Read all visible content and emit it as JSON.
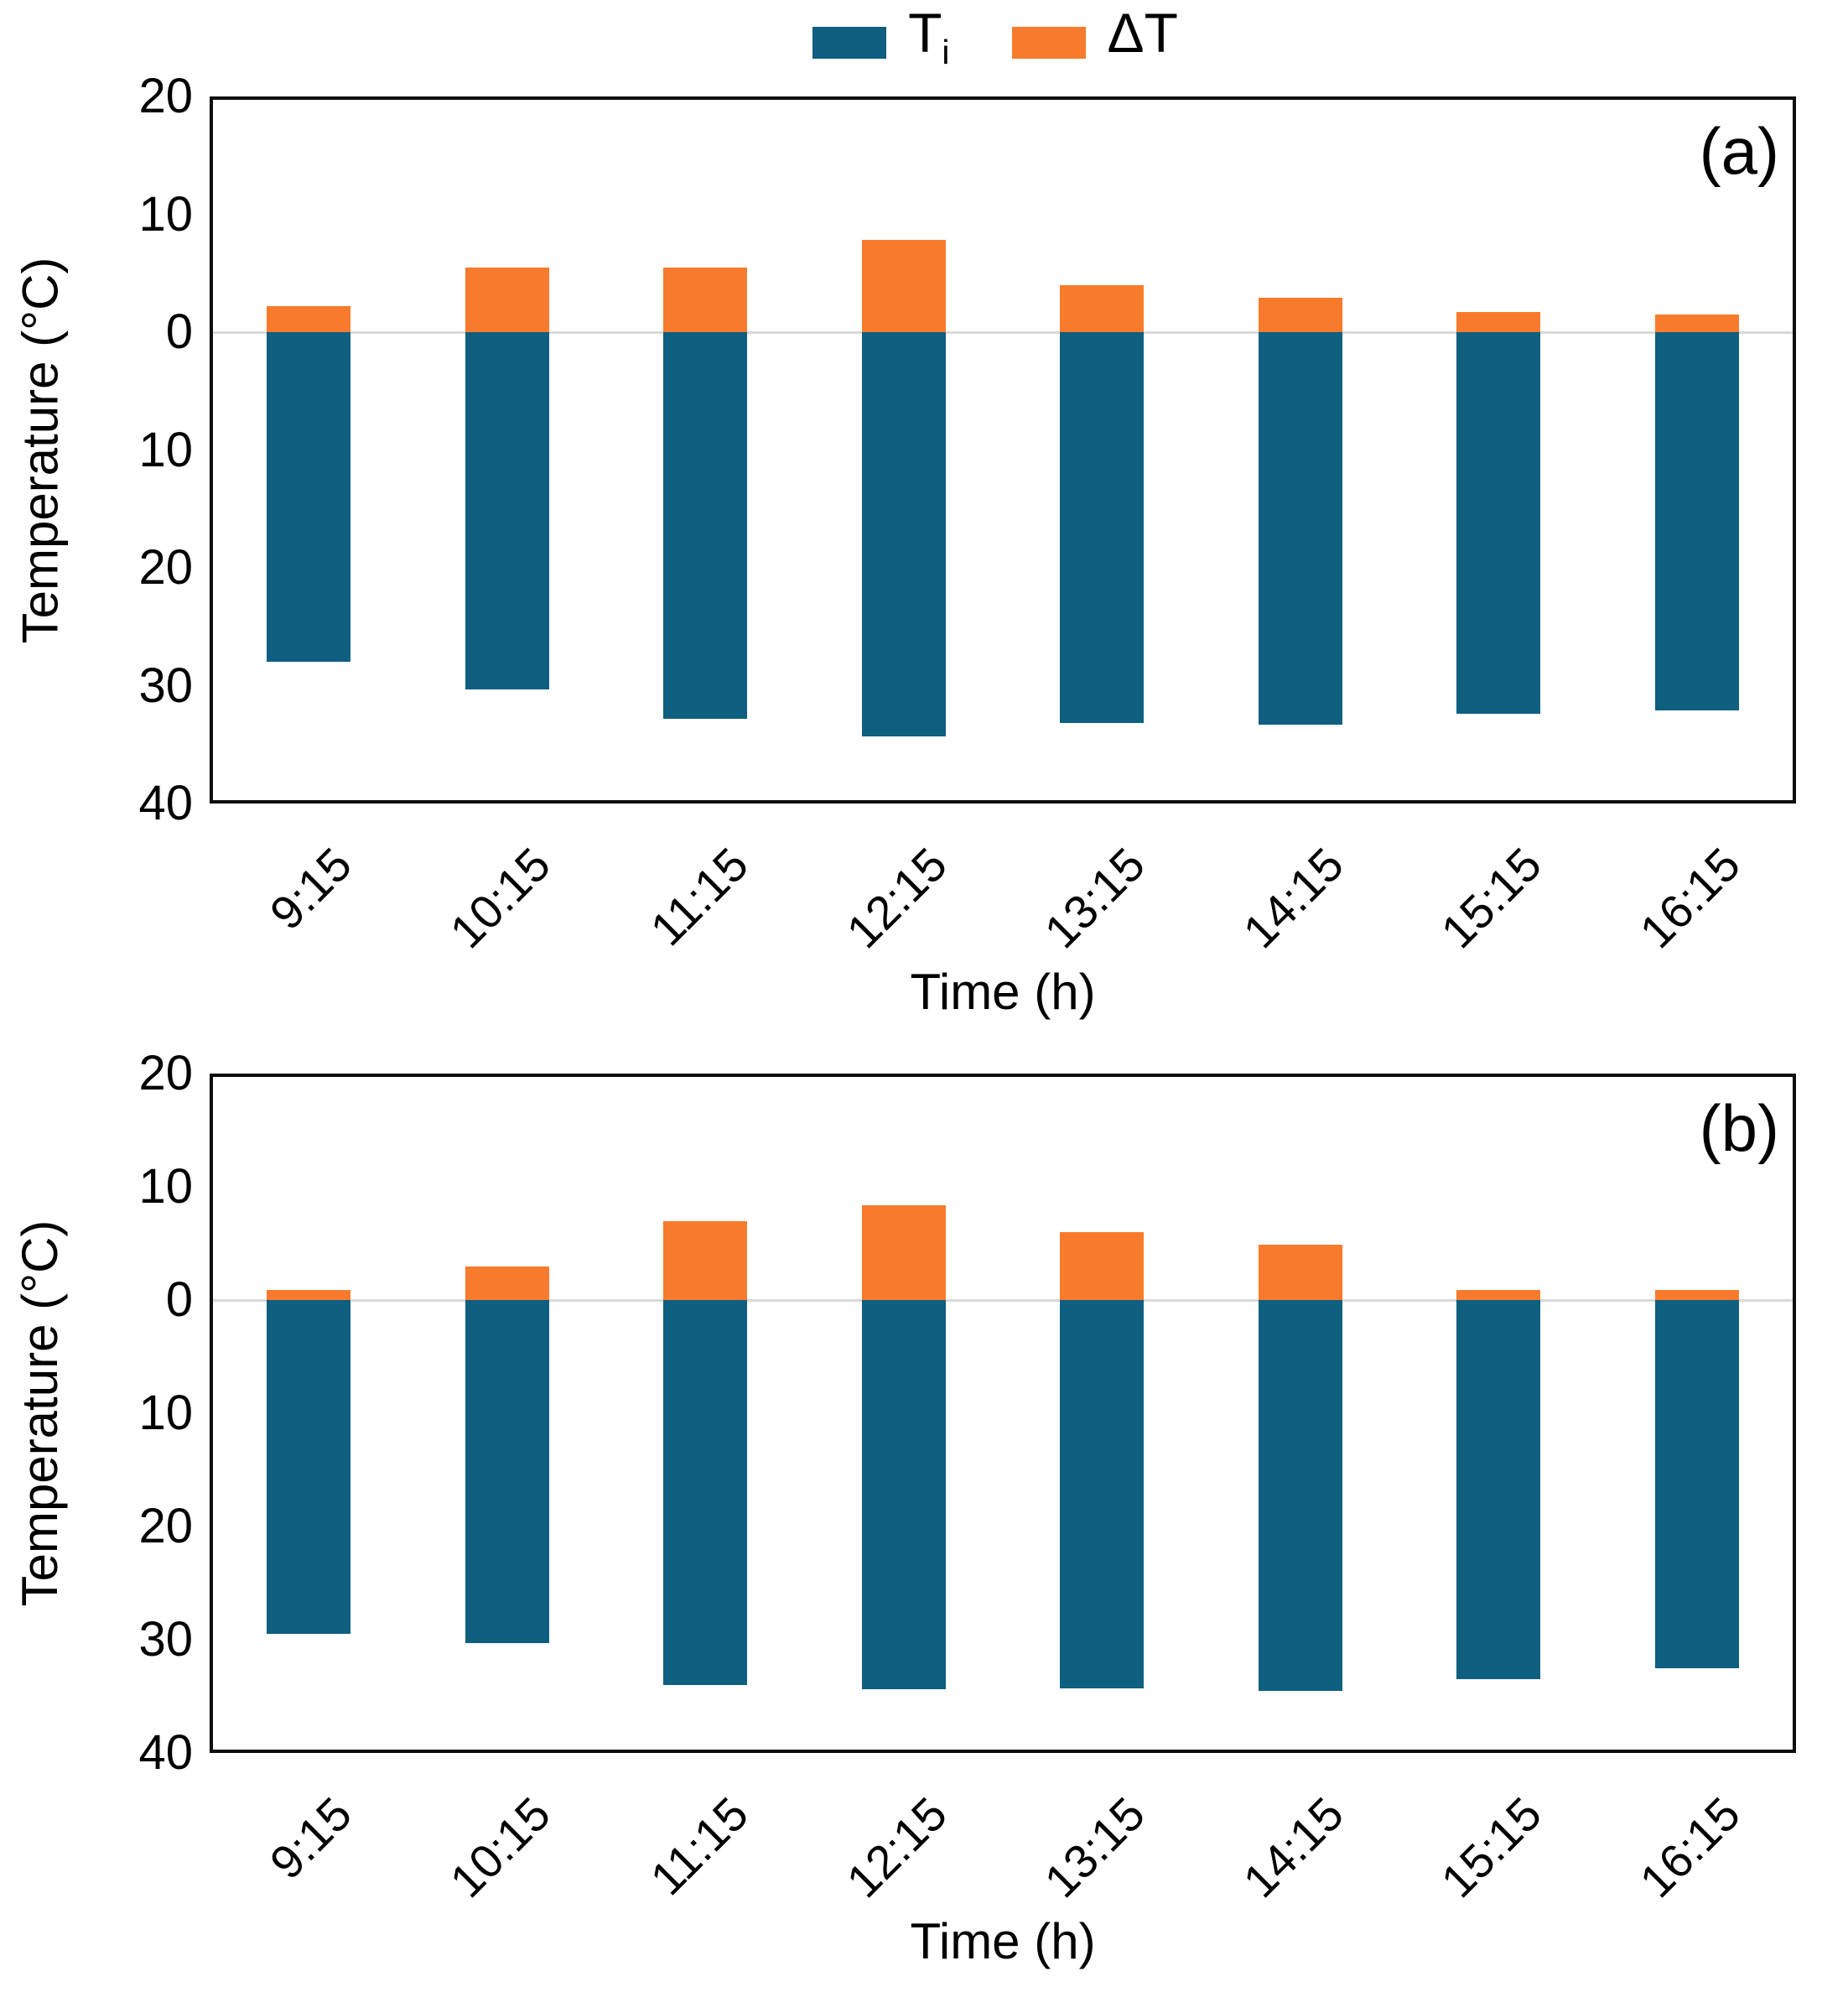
{
  "figure": {
    "legend": [
      {
        "text": "T",
        "sub": "i",
        "color": "#0E5F80"
      },
      {
        "text": "ΔT",
        "sub": "",
        "color": "#F87B2D"
      }
    ],
    "colors": {
      "ti_bar": "#0E5F80",
      "dt_bar": "#F87B2D",
      "zero_gridline": "#D9D9D9",
      "plot_border": "#0d0d0d",
      "text": "#000000"
    }
  },
  "chart_data": [
    {
      "type": "bar",
      "panel_label": "(a)",
      "stacked": true,
      "categories": [
        "9:15",
        "10:15",
        "11:15",
        "12:15",
        "13:15",
        "14:15",
        "15:15",
        "16:15"
      ],
      "series": [
        {
          "name": "Ti",
          "color": "#0E5F80",
          "values": [
            -28.0,
            -30.3,
            -32.8,
            -34.3,
            -33.2,
            -33.3,
            -32.4,
            -32.1
          ]
        },
        {
          "name": "ΔT",
          "color": "#F87B2D",
          "values": [
            2.2,
            5.5,
            5.5,
            7.8,
            4.0,
            2.9,
            1.7,
            1.5
          ]
        }
      ],
      "xlabel": "Time (h)",
      "ylabel": "Temperature (°C)",
      "ylim": [
        -40,
        20
      ],
      "yticks": [
        20,
        10,
        0,
        -10,
        -20,
        -30,
        -40
      ],
      "ytick_labels": [
        "20",
        "10",
        "0",
        "10",
        "20",
        "30",
        "40"
      ],
      "grid": "horizontal line at 0 only",
      "legend_position": "top-center"
    },
    {
      "type": "bar",
      "panel_label": "(b)",
      "stacked": true,
      "categories": [
        "9:15",
        "10:15",
        "11:15",
        "12:15",
        "13:15",
        "14:15",
        "15:15",
        "16:15"
      ],
      "series": [
        {
          "name": "Ti",
          "color": "#0E5F80",
          "values": [
            -29.5,
            -30.3,
            -34.0,
            -34.4,
            -34.3,
            -34.5,
            -33.5,
            -32.5
          ]
        },
        {
          "name": "ΔT",
          "color": "#F87B2D",
          "values": [
            0.9,
            3.0,
            7.0,
            8.4,
            6.0,
            4.9,
            0.9,
            0.9
          ]
        }
      ],
      "xlabel": "Time (h)",
      "ylabel": "Temperature (°C)",
      "ylim": [
        -40,
        20
      ],
      "yticks": [
        20,
        10,
        0,
        -10,
        -20,
        -30,
        -40
      ],
      "ytick_labels": [
        "20",
        "10",
        "0",
        "10",
        "20",
        "30",
        "40"
      ],
      "grid": "horizontal line at 0 only",
      "legend_position": "none"
    }
  ]
}
